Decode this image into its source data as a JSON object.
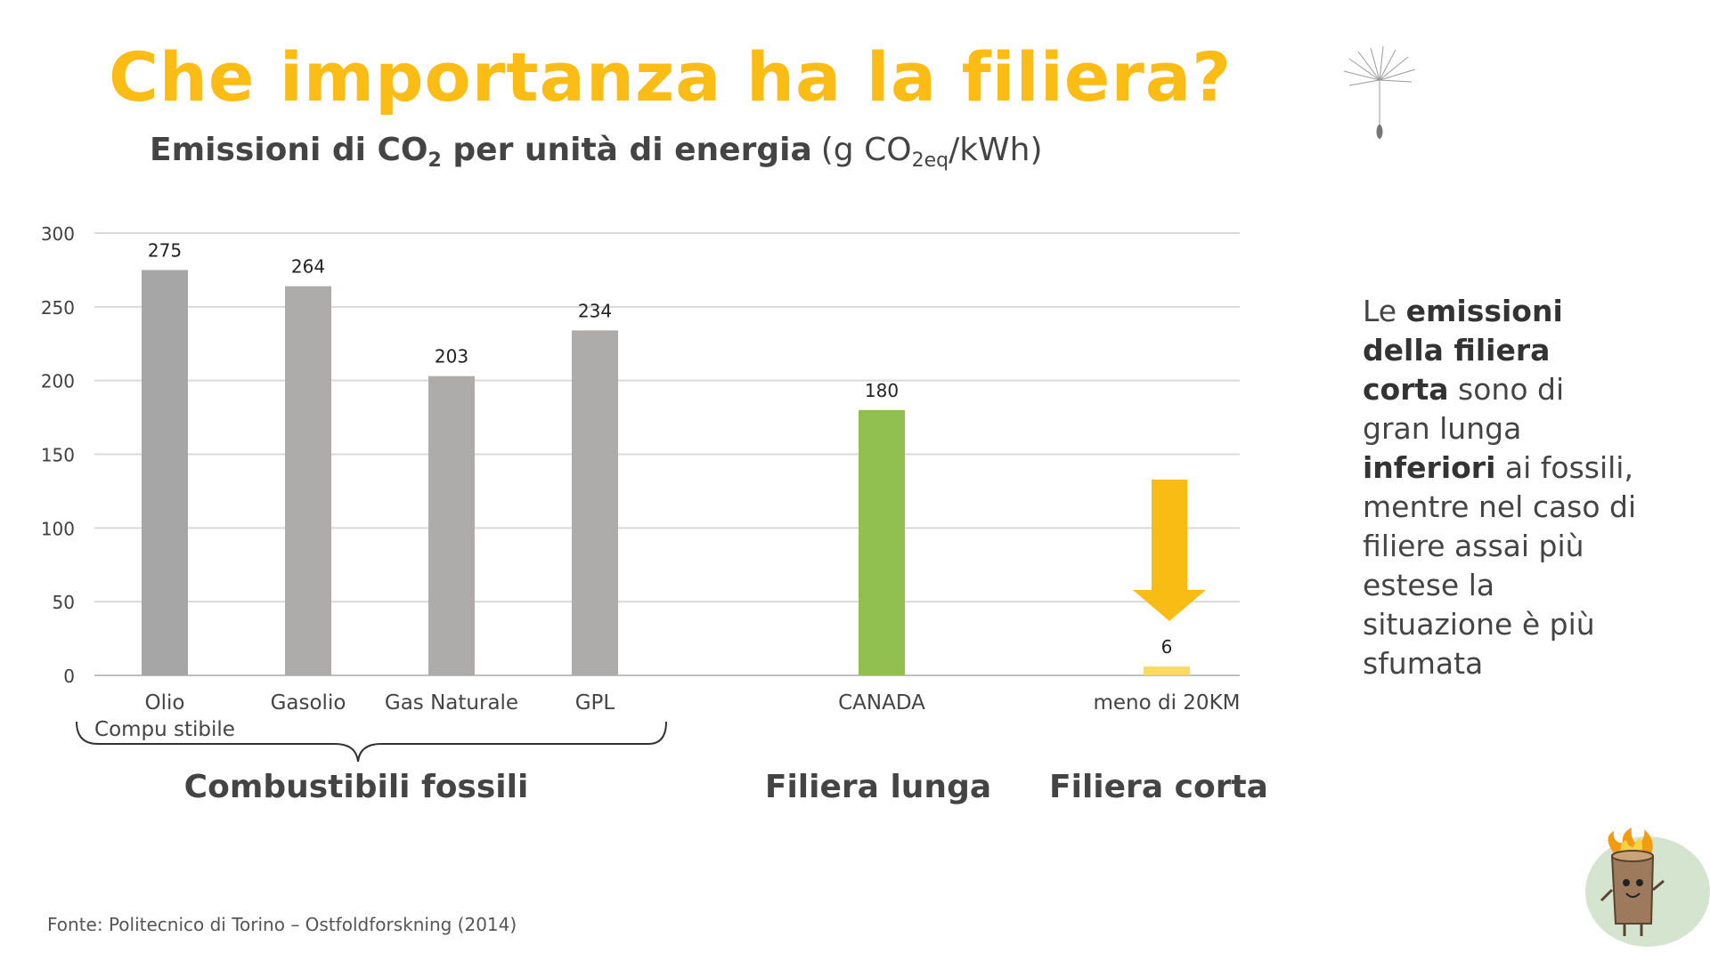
{
  "title": "Che importanza ha la filiera?",
  "subtitle": {
    "text_a": "Emissioni di CO",
    "text_a_sub": "2",
    "text_b": " per unità di energia",
    "unit_a": "(g CO",
    "unit_sub": "2eq",
    "unit_b": "/kWh)"
  },
  "side_text": {
    "p1": "Le ",
    "b1": "emissioni della filiera corta",
    "p2": " sono di gran lunga ",
    "b2": "inferiori",
    "p3": " ai fossili, mentre nel caso di filiere assai più estese la situazione è più sfumata"
  },
  "source": "Fonte: Politecnico di Torino – Ostfoldforskning (2014)",
  "groups": {
    "fossil": "Combustibili fossili",
    "long": "Filiera lunga",
    "short": "Filiera corta"
  },
  "colors": {
    "title": "#FBBC15",
    "fossil_bar_1": "#A6A6A6",
    "fossil_bar": "#AEABAB",
    "long_bar": "#92C050",
    "short_bar": "#FFD966",
    "arrow": "#F9BC15",
    "text": "#444444"
  },
  "icons": [
    "dandelion-seed-icon",
    "burning-log-mascot-icon",
    "downward-arrow-icon"
  ],
  "chart_data": {
    "type": "bar",
    "categories": [
      "Olio Compustibile",
      "Gasolio",
      "Gas Naturale",
      "GPL",
      "CANADA",
      "meno di 20KM"
    ],
    "category_lines": [
      [
        "Olio",
        "Compu stibile"
      ],
      [
        "Gasolio"
      ],
      [
        "Gas Naturale"
      ],
      [
        "GPL"
      ],
      [
        "CANADA"
      ],
      [
        "meno di 20KM"
      ]
    ],
    "values": [
      275,
      264,
      203,
      234,
      180,
      6
    ],
    "data_labels": [
      "275",
      "264",
      "203",
      "234",
      "180",
      "6"
    ],
    "bar_color_keys": [
      "fossil_bar_1",
      "fossil_bar",
      "fossil_bar",
      "fossil_bar",
      "long_bar",
      "short_bar"
    ],
    "ylim": [
      0,
      300
    ],
    "yticks": [
      0,
      50,
      100,
      150,
      200,
      250,
      300
    ],
    "grid": true,
    "legend": "none"
  }
}
